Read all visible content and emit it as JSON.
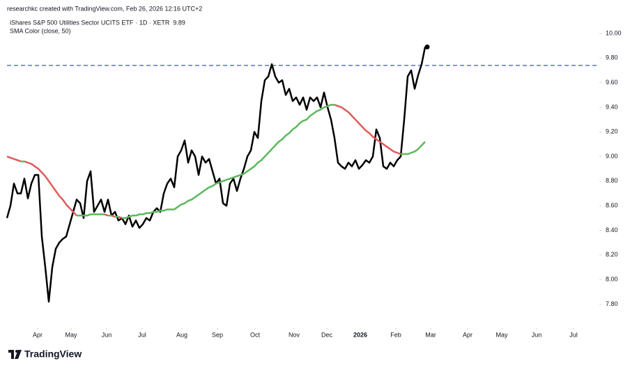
{
  "header": {
    "attribution": "researchkc created with TradingView.com, Feb 26, 2026 12:16 UTC+2",
    "logo": "TradingView"
  },
  "chart_data": {
    "type": "line",
    "legend_suffix": "· 1D · XETR",
    "xlim": [
      0,
      170
    ],
    "xticks": [
      {
        "value": 8.8,
        "label": "Apr"
      },
      {
        "value": 18.4,
        "label": "May"
      },
      {
        "value": 28.6,
        "label": "Jun"
      },
      {
        "value": 38.8,
        "label": "Jul"
      },
      {
        "value": 50.2,
        "label": "Aug"
      },
      {
        "value": 60.4,
        "label": "Sep"
      },
      {
        "value": 71.2,
        "label": "Oct"
      },
      {
        "value": 82.4,
        "label": "Nov"
      },
      {
        "value": 91.8,
        "label": "Dec"
      },
      {
        "value": 101.4,
        "label": "2026"
      },
      {
        "value": 111.6,
        "label": "Feb"
      },
      {
        "value": 121.6,
        "label": "Mar"
      },
      {
        "value": 132.2,
        "label": "Apr"
      },
      {
        "value": 142,
        "label": "May"
      },
      {
        "value": 152,
        "label": "Jun"
      },
      {
        "value": 162.6,
        "label": "Jul"
      }
    ],
    "ylim": [
      7.61,
      10.13
    ],
    "yticks": [
      {
        "value": 7.8,
        "label": "7.80"
      },
      {
        "value": 8.0,
        "label": "8.00"
      },
      {
        "value": 8.2,
        "label": "8.20"
      },
      {
        "value": 8.4,
        "label": "8.40"
      },
      {
        "value": 8.6,
        "label": "8.60"
      },
      {
        "value": 8.8,
        "label": "8.80"
      },
      {
        "value": 9.0,
        "label": "9.00"
      },
      {
        "value": 9.2,
        "label": "9.20"
      },
      {
        "value": 9.4,
        "label": "9.40"
      },
      {
        "value": 9.6,
        "label": "9.60"
      },
      {
        "value": 9.8,
        "label": "9.80"
      },
      {
        "value": 10.0,
        "label": "10.00"
      }
    ],
    "hline": {
      "value": 9.74,
      "color": "#3f4fe0",
      "dashed": true
    },
    "series": [
      {
        "name": "iShares S&P 500 Utilities Sector UCITS ETF",
        "color": "#000000",
        "end_dot": true,
        "values": [
          8.5,
          8.6,
          8.78,
          8.7,
          8.7,
          8.82,
          8.66,
          8.78,
          8.85,
          8.85,
          8.35,
          8.1,
          7.82,
          8.1,
          8.25,
          8.3,
          8.33,
          8.35,
          8.45,
          8.55,
          8.65,
          8.62,
          8.5,
          8.8,
          8.88,
          8.55,
          8.6,
          8.65,
          8.55,
          8.65,
          8.52,
          8.55,
          8.48,
          8.5,
          8.45,
          8.52,
          8.43,
          8.48,
          8.42,
          8.45,
          8.5,
          8.48,
          8.55,
          8.58,
          8.55,
          8.7,
          8.78,
          8.82,
          8.75,
          9.0,
          9.05,
          9.13,
          8.95,
          9.05,
          9.0,
          8.85,
          9.0,
          8.95,
          8.98,
          8.88,
          8.78,
          8.82,
          8.62,
          8.6,
          8.78,
          8.82,
          8.72,
          8.82,
          8.9,
          9.0,
          9.05,
          9.2,
          9.15,
          9.45,
          9.62,
          9.65,
          9.75,
          9.65,
          9.6,
          9.62,
          9.5,
          9.55,
          9.45,
          9.48,
          9.42,
          9.48,
          9.38,
          9.48,
          9.45,
          9.48,
          9.4,
          9.52,
          9.4,
          9.3,
          9.15,
          8.95,
          8.92,
          8.9,
          8.95,
          8.92,
          8.97,
          8.9,
          8.93,
          8.97,
          8.95,
          9.0,
          9.22,
          9.15,
          8.92,
          8.9,
          8.95,
          8.92,
          8.97,
          9.0,
          9.3,
          9.65,
          9.7,
          9.55,
          9.66,
          9.75,
          9.89
        ]
      },
      {
        "name": "SMA Color (close, 50)",
        "color_up": "#5cb85c",
        "color_down": "#e05a5a",
        "values": [
          9.0,
          8.99,
          8.98,
          8.97,
          8.96,
          8.96,
          8.95,
          8.94,
          8.92,
          8.9,
          8.87,
          8.84,
          8.8,
          8.76,
          8.72,
          8.68,
          8.65,
          8.61,
          8.58,
          8.55,
          8.52,
          8.52,
          8.52,
          8.52,
          8.53,
          8.53,
          8.53,
          8.53,
          8.53,
          8.52,
          8.52,
          8.51,
          8.51,
          8.5,
          8.5,
          8.51,
          8.52,
          8.52,
          8.53,
          8.53,
          8.54,
          8.54,
          8.55,
          8.55,
          8.56,
          8.56,
          8.57,
          8.57,
          8.57,
          8.59,
          8.61,
          8.62,
          8.64,
          8.65,
          8.67,
          8.69,
          8.71,
          8.73,
          8.75,
          8.76,
          8.78,
          8.79,
          8.8,
          8.81,
          8.82,
          8.83,
          8.84,
          8.85,
          8.86,
          8.88,
          8.9,
          8.92,
          8.95,
          8.97,
          9.0,
          9.03,
          9.06,
          9.09,
          9.12,
          9.14,
          9.17,
          9.19,
          9.22,
          9.24,
          9.27,
          9.29,
          9.3,
          9.33,
          9.35,
          9.37,
          9.38,
          9.4,
          9.41,
          9.42,
          9.42,
          9.41,
          9.4,
          9.38,
          9.36,
          9.33,
          9.3,
          9.27,
          9.24,
          9.21,
          9.19,
          9.16,
          9.14,
          9.12,
          9.1,
          9.08,
          9.06,
          9.04,
          9.03,
          9.02,
          9.02,
          9.02,
          9.03,
          9.04,
          9.06,
          9.09,
          9.12
        ]
      }
    ]
  }
}
